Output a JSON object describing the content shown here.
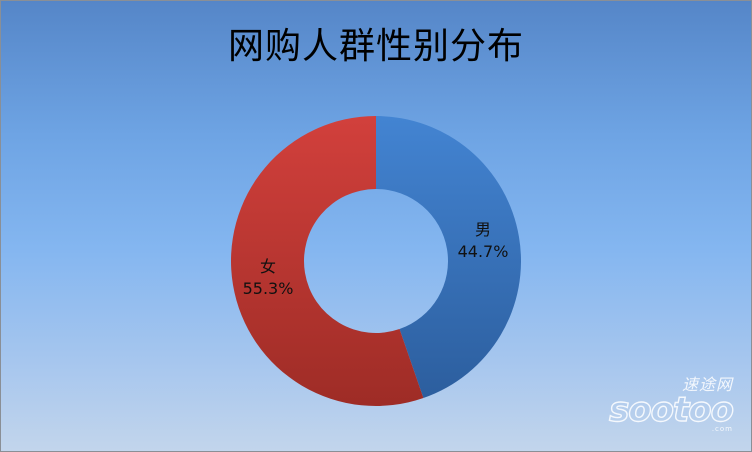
{
  "chart_data": {
    "type": "pie",
    "title": "网购人群性别分布",
    "slices": [
      {
        "name": "男",
        "value": 44.7,
        "label": "44.7%",
        "color": "#3c78c2"
      },
      {
        "name": "女",
        "value": 55.3,
        "label": "55.3%",
        "color": "#c83a36"
      }
    ],
    "donut": true,
    "legend": false
  },
  "watermark": {
    "cn": "速途网",
    "en": "sootoo",
    "com": ".com"
  }
}
